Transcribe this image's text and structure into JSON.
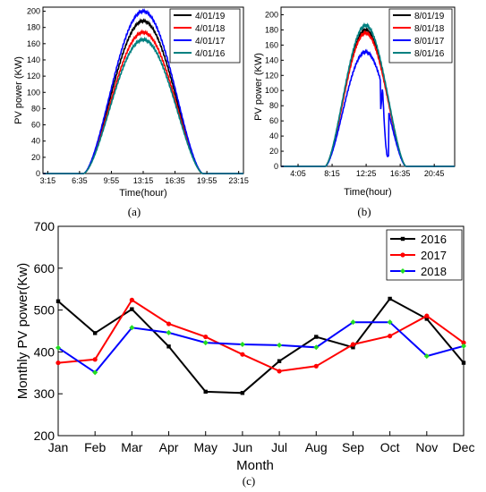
{
  "chart_data": [
    {
      "panel_label": "(a)",
      "type": "line",
      "xlabel": "Time(hour)",
      "ylabel": "PV power (KW)",
      "x_ticks": [
        "3:15",
        "6:35",
        "9:55",
        "13:15",
        "16:35",
        "19:55",
        "23:15"
      ],
      "y_ticks": [
        "0",
        "20",
        "40",
        "60",
        "80",
        "100",
        "120",
        "140",
        "160",
        "180",
        "200"
      ],
      "ylim": [
        0,
        205
      ],
      "xlim_hours": [
        2.75,
        23.75
      ],
      "legend_position": "top-right",
      "series": [
        {
          "name": "4/01/19",
          "color": "#000000",
          "on_hour": 7.0,
          "off_hour": 19.5,
          "peak_hour": 13.2,
          "peak": 188
        },
        {
          "name": "4/01/18",
          "color": "#ff0000",
          "on_hour": 7.0,
          "off_hour": 19.5,
          "peak_hour": 13.2,
          "peak": 174
        },
        {
          "name": "4/01/17",
          "color": "#0000ff",
          "on_hour": 7.0,
          "off_hour": 19.5,
          "peak_hour": 13.2,
          "peak": 200
        },
        {
          "name": "4/01/16",
          "color": "#008080",
          "on_hour": 7.0,
          "off_hour": 19.5,
          "peak_hour": 13.2,
          "peak": 165
        }
      ]
    },
    {
      "panel_label": "(b)",
      "type": "line",
      "xlabel": "Time(hour)",
      "ylabel": "PV power (KW)",
      "x_ticks": [
        "4:05",
        "8:15",
        "12:25",
        "16:35",
        "20:45"
      ],
      "y_ticks": [
        "0",
        "20",
        "40",
        "60",
        "80",
        "100",
        "120",
        "140",
        "160",
        "180",
        "200"
      ],
      "ylim": [
        0,
        210
      ],
      "xlim_hours": [
        2.0,
        23.25
      ],
      "legend_position": "top-right",
      "series": [
        {
          "name": "8/01/19",
          "color": "#000000",
          "on_hour": 7.4,
          "off_hour": 17.3,
          "peak_hour": 12.35,
          "peak": 180
        },
        {
          "name": "8/01/18",
          "color": "#ff0000",
          "on_hour": 7.4,
          "off_hour": 17.3,
          "peak_hour": 12.35,
          "peak": 176
        },
        {
          "name": "8/01/17",
          "color": "#0000ff",
          "on_hour": 7.4,
          "off_hour": 17.3,
          "peak_hour": 12.35,
          "peak": 151
        },
        {
          "name": "8/01/16",
          "color": "#008080",
          "on_hour": 7.4,
          "off_hour": 17.3,
          "peak_hour": 12.35,
          "peak": 186
        }
      ]
    },
    {
      "panel_label": "(c)",
      "type": "line",
      "xlabel": "Month",
      "ylabel": "Monthly PV power(Kw)",
      "categories": [
        "Jan",
        "Feb",
        "Mar",
        "Apr",
        "May",
        "Jun",
        "Jul",
        "Aug",
        "Sep",
        "Oct",
        "Nov",
        "Dec"
      ],
      "y_ticks": [
        "200",
        "300",
        "400",
        "500",
        "600",
        "700"
      ],
      "ylim": [
        200,
        700
      ],
      "legend_position": "top-right",
      "series": [
        {
          "name": "2016",
          "color": "#000000",
          "marker_color": "#000000",
          "values": [
            521,
            445,
            502,
            413,
            305,
            302,
            378,
            436,
            411,
            527,
            479,
            374
          ]
        },
        {
          "name": "2017",
          "color": "#ff0000",
          "marker_color": "#ff0000",
          "values": [
            374,
            382,
            524,
            467,
            436,
            394,
            354,
            366,
            418,
            438,
            486,
            422
          ]
        },
        {
          "name": "2018",
          "color": "#0000ff",
          "marker_color": "#22dd22",
          "values": [
            410,
            351,
            458,
            446,
            422,
            418,
            416,
            411,
            471,
            471,
            390,
            414
          ]
        }
      ]
    }
  ]
}
